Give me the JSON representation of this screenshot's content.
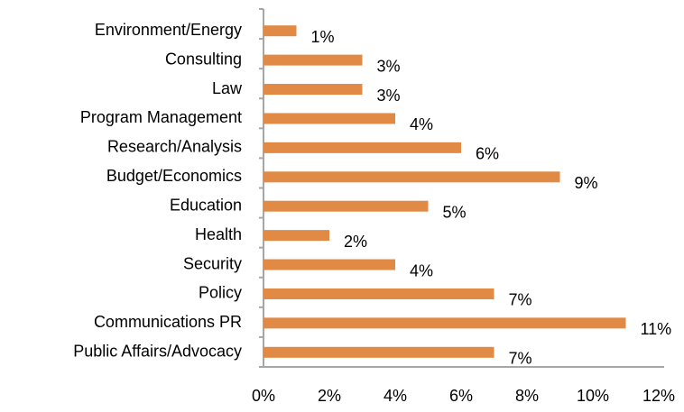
{
  "chart_data": {
    "type": "bar",
    "orientation": "horizontal",
    "categories": [
      "Environment/Energy",
      "Consulting",
      "Law",
      "Program Management",
      "Research/Analysis",
      "Budget/Economics",
      "Education",
      "Health",
      "Security",
      "Policy",
      "Communications PR",
      "Public Affairs/Advocacy"
    ],
    "values": [
      1,
      3,
      3,
      4,
      6,
      9,
      5,
      2,
      4,
      7,
      11,
      7
    ],
    "value_labels": [
      "1%",
      "3%",
      "3%",
      "4%",
      "6%",
      "9%",
      "5%",
      "2%",
      "4%",
      "7%",
      "11%",
      "7%"
    ],
    "color": "#e08a45",
    "xlim": [
      0,
      12
    ],
    "xticks": [
      {
        "value": 0,
        "label": "0%"
      },
      {
        "value": 2,
        "label": "2%"
      },
      {
        "value": 4,
        "label": "4%"
      },
      {
        "value": 6,
        "label": "6%"
      },
      {
        "value": 8,
        "label": "8%"
      },
      {
        "value": 10,
        "label": "10%"
      },
      {
        "value": 12,
        "label": "12%"
      }
    ],
    "grid": false
  }
}
